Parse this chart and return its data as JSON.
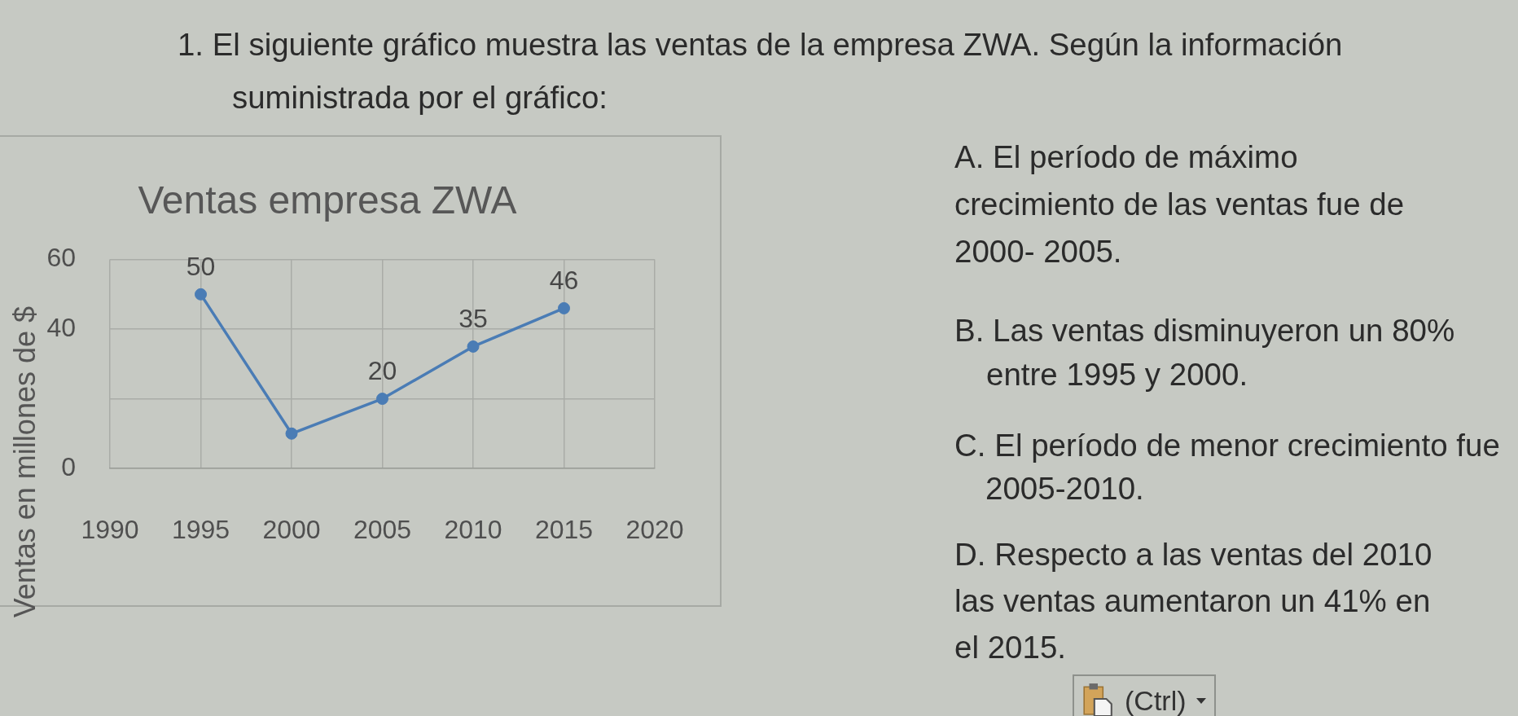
{
  "chart_data": {
    "type": "line",
    "title": "Ventas empresa ZWA",
    "ylabel": "Ventas en millones de $",
    "x": [
      1995,
      2000,
      2005,
      2010,
      2015
    ],
    "series": [
      {
        "color": "#4a7cb5",
        "values": [
          50,
          10,
          20,
          35,
          46
        ],
        "value_labels": [
          "50",
          null,
          "20",
          "35",
          "46"
        ]
      }
    ],
    "xlim": [
      1990,
      2020
    ],
    "xticks": [
      1990,
      1995,
      2000,
      2005,
      2010,
      2015,
      2020
    ],
    "ylim": [
      0,
      60
    ],
    "yticks": [
      0,
      {
        "value": 20,
        "label": null
      },
      40,
      60
    ],
    "grid": true,
    "marker": "circle",
    "line_style": "solid",
    "annotations": [
      "1. El siguiente gráfico muestra las ventas de la empresa ZWA. Según la información\nsuministrada por el gráfico:",
      "A. El período de máximo\ncrecimiento de las ventas fue de\n2000- 2005.",
      "B. Las ventas disminuyeron un 80%\nentre 1995 y 2000.",
      "C. El período de menor crecimiento fue\n2005-2010.",
      "D. Respecto a las ventas del 2010\nlas ventas aumentaron un 41% en\nel 2015.",
      "(Ctrl)"
    ]
  }
}
